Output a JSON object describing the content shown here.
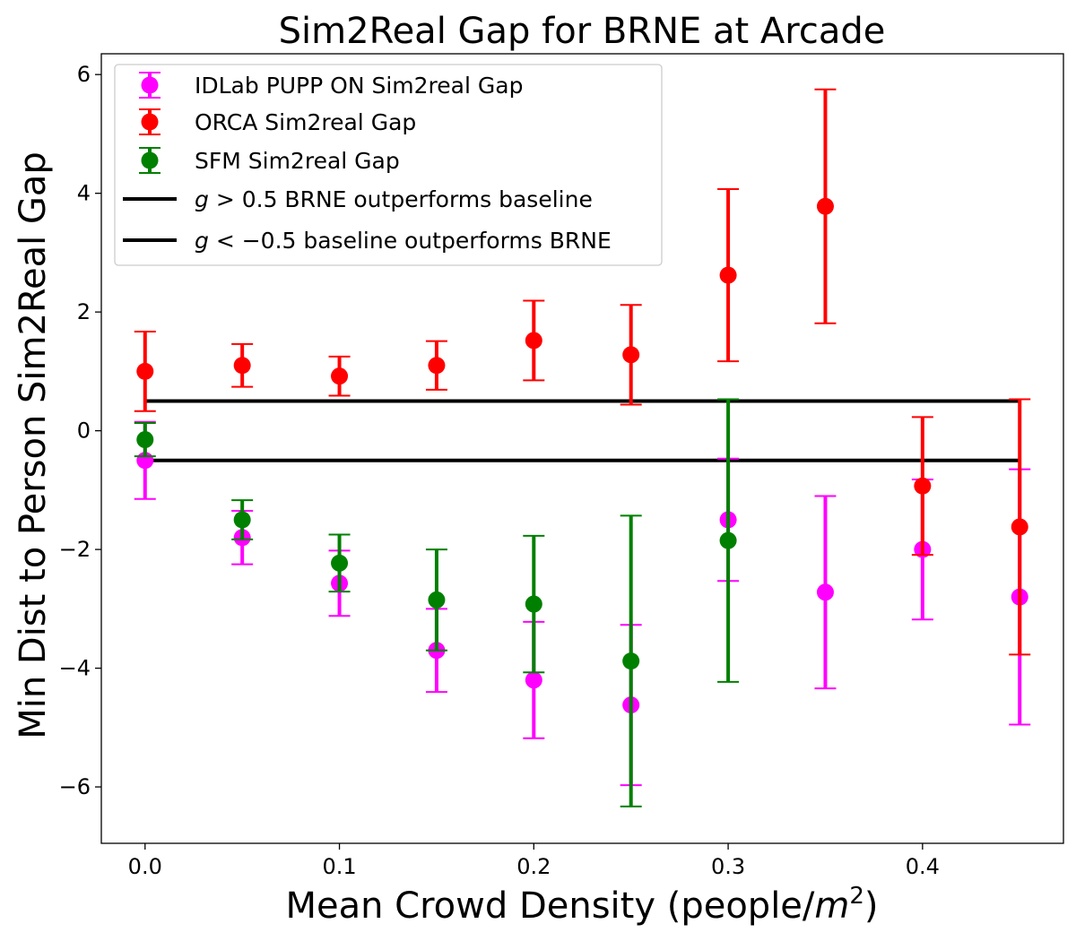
{
  "chart_data": {
    "type": "scatter",
    "title": "Sim2Real Gap for BRNE at Arcade",
    "xlabel": "Mean Crowd Density (people/",
    "xlabel_unit": "m",
    "xlabel_exp": "2",
    "xlabel_close": ")",
    "ylabel": "Min Dist to Person Sim2Real Gap",
    "xlim": [
      -0.0225,
      0.4725
    ],
    "ylim": [
      -6.95,
      6.35
    ],
    "xticks": [
      0.0,
      0.1,
      0.2,
      0.3,
      0.4
    ],
    "yticks": [
      -6,
      -4,
      -2,
      0,
      2,
      4,
      6
    ],
    "xtick_labels": [
      "0.0",
      "0.1",
      "0.2",
      "0.3",
      "0.4"
    ],
    "ytick_labels": [
      "−6",
      "−4",
      "−2",
      "0",
      "2",
      "4",
      "6"
    ],
    "grid": false,
    "legend_position": "upper-left",
    "series": [
      {
        "name": "IDLab PUPP ON Sim2real Gap",
        "color": "#ff00ff",
        "points": [
          {
            "x": 0.0,
            "y": -0.5,
            "err": 0.65
          },
          {
            "x": 0.05,
            "y": -1.8,
            "err": 0.45
          },
          {
            "x": 0.1,
            "y": -2.57,
            "err": 0.55
          },
          {
            "x": 0.15,
            "y": -3.7,
            "err": 0.7
          },
          {
            "x": 0.2,
            "y": -4.2,
            "err": 0.98
          },
          {
            "x": 0.25,
            "y": -4.62,
            "err": 1.35
          },
          {
            "x": 0.3,
            "y": -1.5,
            "err": 1.03
          },
          {
            "x": 0.35,
            "y": -2.72,
            "err": 1.62
          },
          {
            "x": 0.4,
            "y": -2.0,
            "err": 1.18
          },
          {
            "x": 0.45,
            "y": -2.8,
            "err": 2.15
          }
        ]
      },
      {
        "name": "ORCA Sim2real Gap",
        "color": "#ff0000",
        "points": [
          {
            "x": 0.0,
            "y": 1.0,
            "err": 0.67
          },
          {
            "x": 0.05,
            "y": 1.1,
            "err": 0.36
          },
          {
            "x": 0.1,
            "y": 0.92,
            "err": 0.33
          },
          {
            "x": 0.15,
            "y": 1.1,
            "err": 0.41
          },
          {
            "x": 0.2,
            "y": 1.52,
            "err": 0.67
          },
          {
            "x": 0.25,
            "y": 1.28,
            "err": 0.84
          },
          {
            "x": 0.3,
            "y": 2.62,
            "err": 1.45
          },
          {
            "x": 0.35,
            "y": 3.78,
            "err": 1.97
          },
          {
            "x": 0.4,
            "y": -0.93,
            "err": 1.16
          },
          {
            "x": 0.45,
            "y": -1.62,
            "err": 2.15
          }
        ]
      },
      {
        "name": "SFM Sim2real Gap",
        "color": "#008000",
        "points": [
          {
            "x": 0.0,
            "y": -0.15,
            "err": 0.28
          },
          {
            "x": 0.05,
            "y": -1.5,
            "err": 0.33
          },
          {
            "x": 0.1,
            "y": -2.23,
            "err": 0.48
          },
          {
            "x": 0.15,
            "y": -2.85,
            "err": 0.85
          },
          {
            "x": 0.2,
            "y": -2.92,
            "err": 1.15
          },
          {
            "x": 0.25,
            "y": -3.88,
            "err": 2.45
          },
          {
            "x": 0.3,
            "y": -1.85,
            "err": 2.38
          }
        ]
      }
    ],
    "reference_lines": [
      {
        "name_prefix": "g",
        "name_op": " > 0.5 BRNE outperforms baseline",
        "y": 0.5,
        "x_start": 0.0,
        "x_end": 0.45,
        "color": "#000000"
      },
      {
        "name_prefix": "g",
        "name_op": " < −0.5 baseline outperforms BRNE",
        "y": -0.5,
        "x_start": 0.0,
        "x_end": 0.45,
        "color": "#000000"
      }
    ]
  }
}
